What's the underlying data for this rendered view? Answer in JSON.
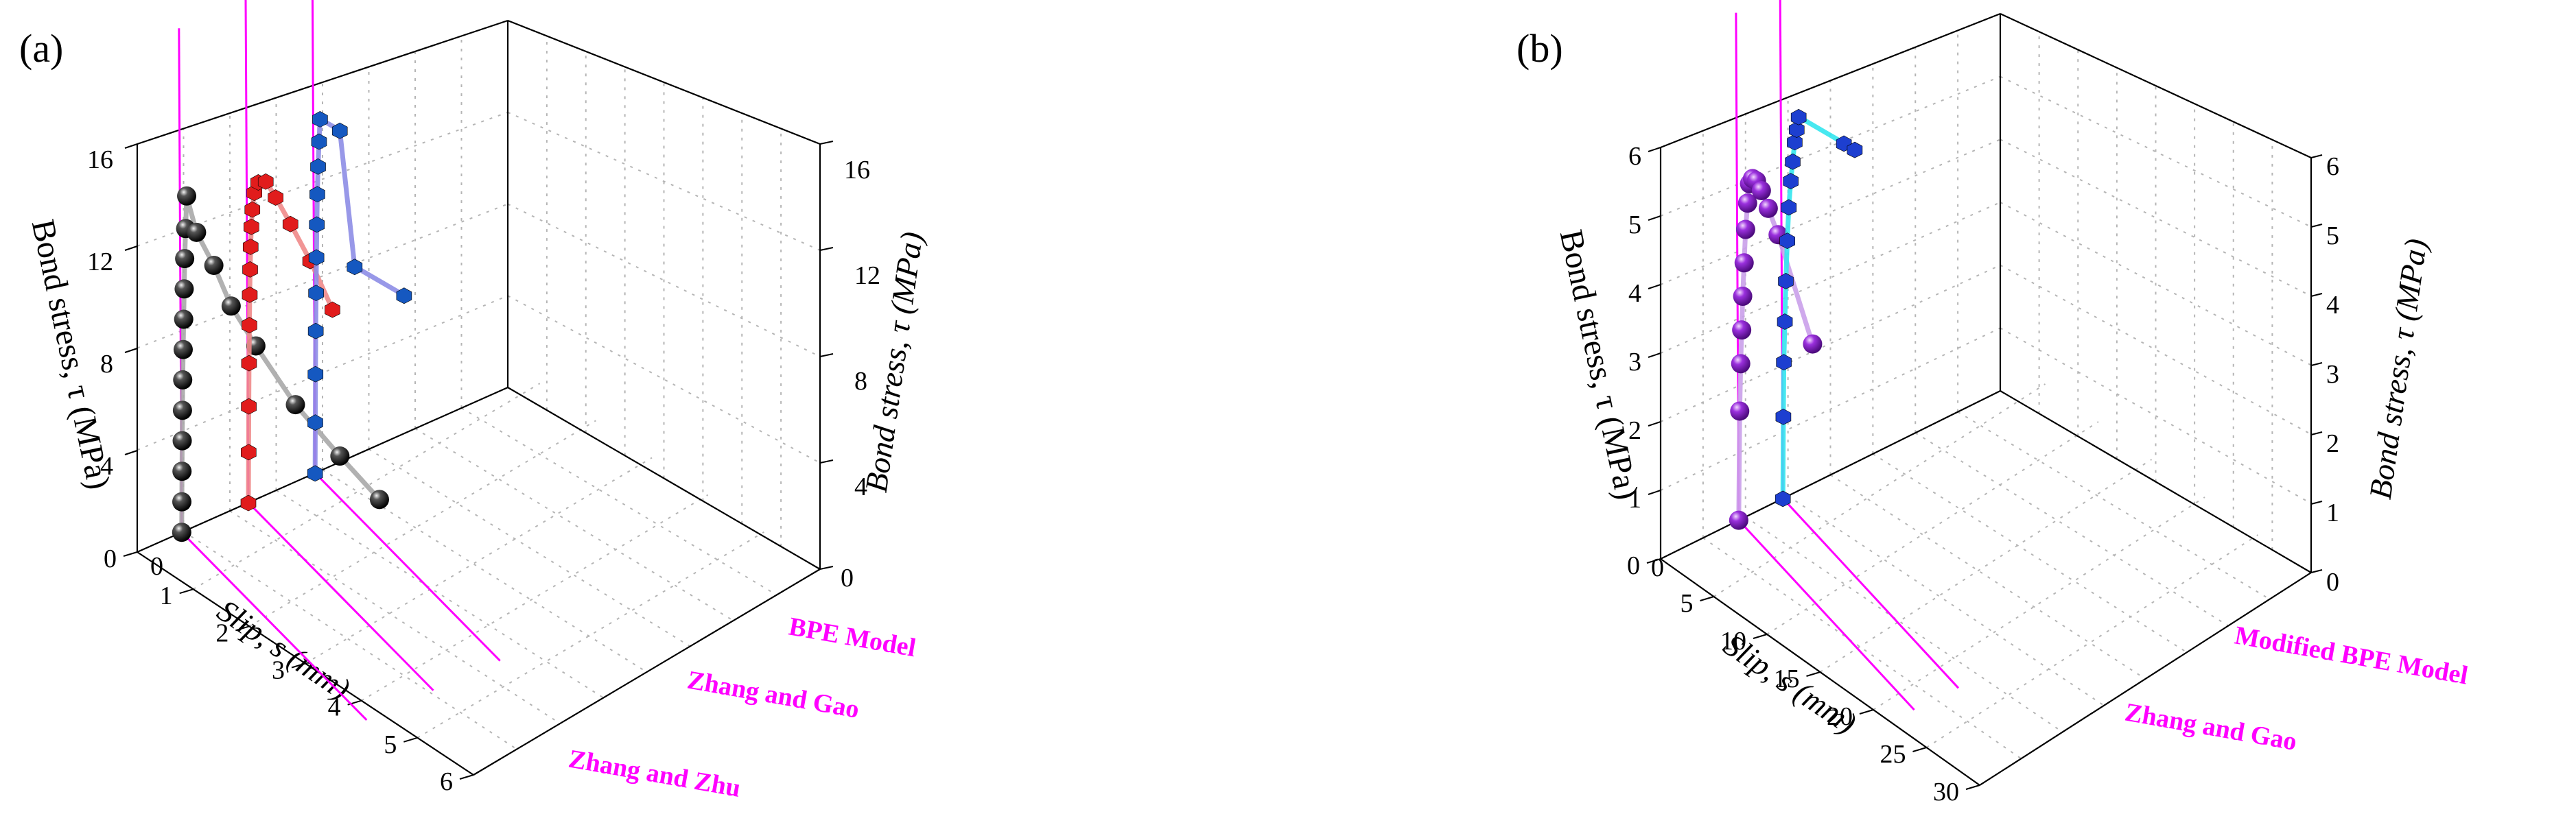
{
  "chart_data": [
    {
      "type": "scatter",
      "panel_label": "(a)",
      "y_left_label": "Bond stress, τ (MPa)",
      "y_right_label": "Bond stress, τ (MPa)",
      "x_label": "Slip, s (mm)",
      "x_ticks": [
        "0",
        "1",
        "2",
        "3",
        "4",
        "5",
        "6"
      ],
      "y_ticks": [
        "0",
        "4",
        "8",
        "12",
        "16"
      ],
      "y_right_ticks": [
        "0",
        "4",
        "8",
        "12",
        "16"
      ],
      "xlim": [
        0,
        6
      ],
      "ylim": [
        0,
        16
      ],
      "series": [
        {
          "name": "Zhang and Zhu",
          "color": "#1a1a1a",
          "line_color": "#a8a8a8",
          "marker": "sphere",
          "x": [
            0,
            0.003,
            0.006,
            0.01,
            0.015,
            0.02,
            0.03,
            0.04,
            0.05,
            0.06,
            0.08,
            0.1,
            0.3,
            0.65,
            1.0,
            1.5,
            2.3,
            3.2,
            4.0
          ],
          "y": [
            0,
            1.2,
            2.4,
            3.6,
            4.8,
            6.0,
            7.2,
            8.4,
            9.6,
            10.8,
            12.0,
            13.3,
            12.1,
            11.2,
            10.0,
            9.0,
            7.6,
            6.6,
            5.8
          ]
        },
        {
          "name": "Zhang and Gao",
          "color": "#e11c1c",
          "line_color": "#f08a8a",
          "marker": "cube",
          "x": [
            0,
            0.004,
            0.008,
            0.013,
            0.02,
            0.027,
            0.035,
            0.045,
            0.06,
            0.08,
            0.12,
            0.2,
            0.35,
            0.55,
            0.85,
            1.25,
            1.7
          ],
          "y": [
            0,
            2.0,
            3.8,
            5.5,
            7.0,
            8.2,
            9.2,
            10.1,
            10.9,
            11.6,
            12.3,
            12.8,
            13.0,
            12.6,
            11.9,
            10.9,
            9.5
          ]
        },
        {
          "name": "BPE Model",
          "color": "#1558c0",
          "line_color": "#8d8de6",
          "marker": "cube",
          "x": [
            0,
            0.004,
            0.008,
            0.013,
            0.02,
            0.027,
            0.035,
            0.045,
            0.06,
            0.08,
            0.1,
            0.5,
            0.8,
            1.8
          ],
          "y": [
            0,
            2.0,
            3.9,
            5.6,
            7.1,
            8.5,
            9.8,
            11.0,
            12.1,
            13.1,
            14.0,
            14.0,
            9.0,
            9.0
          ]
        }
      ]
    },
    {
      "type": "scatter",
      "panel_label": "(b)",
      "y_left_label": "Bond stress, τ (MPa)",
      "y_right_label": "Bond stress, τ (MPa)",
      "x_label": "Slip, s (mm)",
      "x_ticks": [
        "0",
        "5",
        "10",
        "15",
        "20",
        "25",
        "30"
      ],
      "y_ticks": [
        "0",
        "1",
        "2",
        "3",
        "4",
        "5",
        "6"
      ],
      "y_right_ticks": [
        "0",
        "1",
        "2",
        "3",
        "4",
        "5",
        "6"
      ],
      "xlim": [
        0,
        30
      ],
      "ylim": [
        0,
        6
      ],
      "series": [
        {
          "name": "Zhang and Gao",
          "color": "#8a22c8",
          "line_color": "#caa0ea",
          "marker": "sphere",
          "x": [
            0,
            0.1,
            0.2,
            0.3,
            0.4,
            0.55,
            0.7,
            0.9,
            1.1,
            1.4,
            1.8,
            2.3,
            3.0,
            4.0,
            7.5
          ],
          "y": [
            0,
            1.6,
            2.3,
            2.8,
            3.3,
            3.8,
            4.3,
            4.7,
            5.0,
            5.1,
            5.1,
            5.0,
            4.8,
            4.5,
            3.2
          ]
        },
        {
          "name": "Modified BPE Model",
          "color": "#1d3fd0",
          "line_color": "#33e6ee",
          "marker": "cube",
          "x": [
            0,
            0.05,
            0.1,
            0.2,
            0.3,
            0.45,
            0.6,
            0.8,
            1.0,
            1.2,
            1.4,
            1.6,
            6.2,
            7.3
          ],
          "y": [
            0,
            1.2,
            2.0,
            2.6,
            3.2,
            3.8,
            4.3,
            4.7,
            5.0,
            5.3,
            5.5,
            5.7,
            5.7,
            5.7
          ]
        }
      ]
    }
  ]
}
